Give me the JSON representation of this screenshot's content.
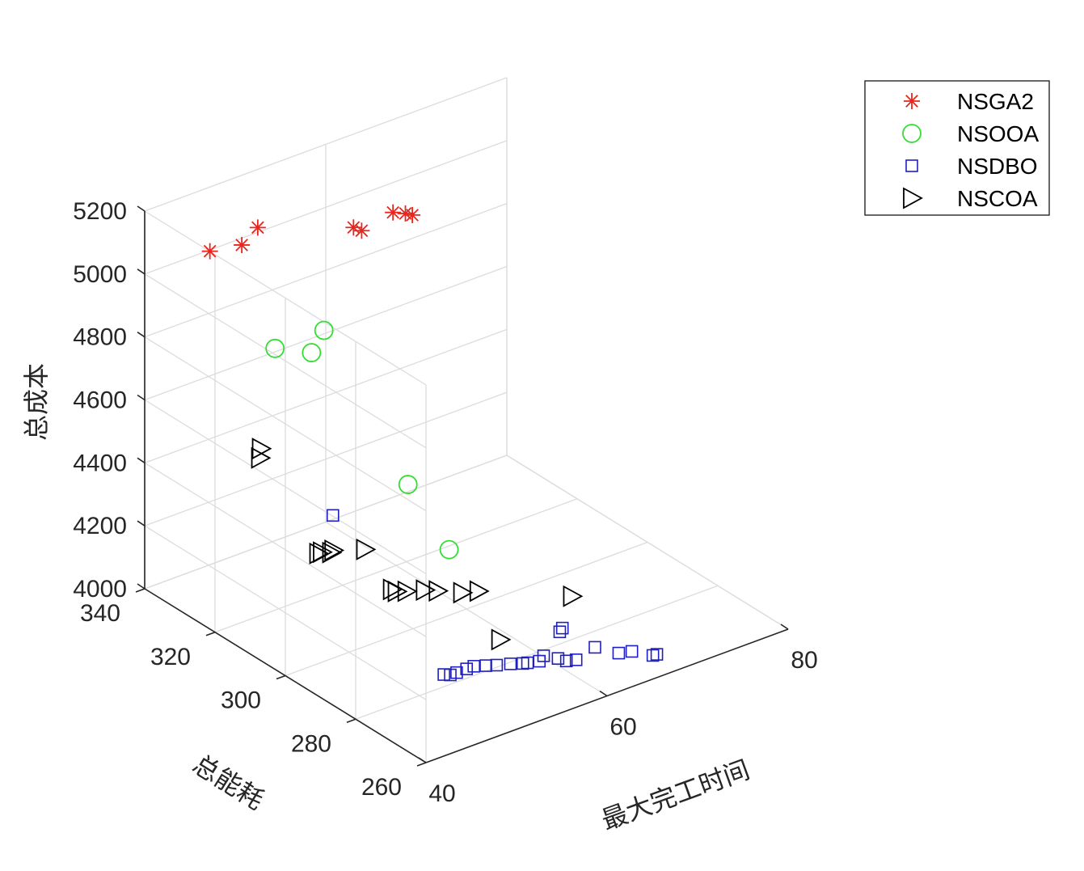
{
  "chart_data": {
    "type": "scatter",
    "projection": "3d",
    "xlabel": "最大完工时间",
    "ylabel": "总能耗",
    "zlabel": "总成本",
    "xlim": [
      40,
      80
    ],
    "ylim": [
      260,
      340
    ],
    "zlim": [
      4000,
      5200
    ],
    "xticks": [
      40,
      60,
      80
    ],
    "yticks": [
      260,
      280,
      300,
      320,
      340
    ],
    "zticks": [
      4000,
      4200,
      4400,
      4600,
      4800,
      5000,
      5200
    ],
    "grid": true,
    "legend_position": "top-right",
    "series": [
      {
        "name": "NSGA2",
        "marker": "asterisk",
        "color": "#e8261e",
        "points": [
          {
            "x": 44.6,
            "y": 333.3,
            "z": 5070
          },
          {
            "x": 47.5,
            "y": 331.7,
            "z": 5070
          },
          {
            "x": 48.8,
            "y": 330.5,
            "z": 5120
          },
          {
            "x": 57.2,
            "y": 324.9,
            "z": 5070
          },
          {
            "x": 57.4,
            "y": 323.1,
            "z": 5070
          },
          {
            "x": 60.2,
            "y": 321.4,
            "z": 5110
          },
          {
            "x": 61.3,
            "y": 320.7,
            "z": 5100
          },
          {
            "x": 61.6,
            "y": 319.5,
            "z": 5100
          }
        ]
      },
      {
        "name": "NSOOA",
        "marker": "circle",
        "color": "#33dd33",
        "points": [
          {
            "x": 49.5,
            "y": 327.4,
            "z": 4750
          },
          {
            "x": 51.9,
            "y": 323.2,
            "z": 4740
          },
          {
            "x": 54.9,
            "y": 327.4,
            "z": 4750
          },
          {
            "x": 55.8,
            "y": 305.8,
            "z": 4400
          },
          {
            "x": 58.4,
            "y": 300.8,
            "z": 4200
          }
        ]
      },
      {
        "name": "NSDBO",
        "marker": "square",
        "color": "#1f1fbf",
        "points": [
          {
            "x": 48.9,
            "y": 309.4,
            "z": 4350
          },
          {
            "x": 51.1,
            "y": 283.5,
            "z": 4000
          },
          {
            "x": 51.5,
            "y": 282.7,
            "z": 4000
          },
          {
            "x": 52.2,
            "y": 282.7,
            "z": 4000
          },
          {
            "x": 53.3,
            "y": 282.7,
            "z": 4000
          },
          {
            "x": 54.1,
            "y": 282.7,
            "z": 4000
          },
          {
            "x": 55.0,
            "y": 281.6,
            "z": 4000
          },
          {
            "x": 55.8,
            "y": 280.6,
            "z": 4000
          },
          {
            "x": 56.9,
            "y": 279.5,
            "z": 4000
          },
          {
            "x": 57.8,
            "y": 278.3,
            "z": 4000
          },
          {
            "x": 58.2,
            "y": 278.0,
            "z": 4000
          },
          {
            "x": 59.2,
            "y": 277.2,
            "z": 4000
          },
          {
            "x": 60.1,
            "y": 278.3,
            "z": 4000
          },
          {
            "x": 60.8,
            "y": 276.0,
            "z": 4000
          },
          {
            "x": 61.1,
            "y": 274.4,
            "z": 4000
          },
          {
            "x": 61.9,
            "y": 273.7,
            "z": 4000
          },
          {
            "x": 63.9,
            "y": 283.5,
            "z": 4000
          },
          {
            "x": 64.5,
            "y": 284.3,
            "z": 4000
          },
          {
            "x": 64.6,
            "y": 275.3,
            "z": 4000
          },
          {
            "x": 65.6,
            "y": 271.1,
            "z": 4000
          },
          {
            "x": 66.7,
            "y": 270.2,
            "z": 4000
          },
          {
            "x": 67.7,
            "y": 266.8,
            "z": 4000
          },
          {
            "x": 68.1,
            "y": 266.7,
            "z": 4000
          }
        ]
      },
      {
        "name": "NSCOA",
        "marker": "triangle-right",
        "color": "#000000",
        "points": [
          {
            "x": 45.0,
            "y": 320.1,
            "z": 4500
          },
          {
            "x": 45.4,
            "y": 320.9,
            "z": 4520
          },
          {
            "x": 48.9,
            "y": 313.6,
            "z": 4200
          },
          {
            "x": 49.3,
            "y": 313.6,
            "z": 4200
          },
          {
            "x": 49.9,
            "y": 312.5,
            "z": 4200
          },
          {
            "x": 50.3,
            "y": 312.9,
            "z": 4200
          },
          {
            "x": 52.6,
            "y": 309.8,
            "z": 4200
          },
          {
            "x": 53.5,
            "y": 304.5,
            "z": 4100
          },
          {
            "x": 53.6,
            "y": 303.4,
            "z": 4100
          },
          {
            "x": 54.3,
            "y": 302.4,
            "z": 4100
          },
          {
            "x": 55.7,
            "y": 300.8,
            "z": 4100
          },
          {
            "x": 56.5,
            "y": 299.2,
            "z": 4100
          },
          {
            "x": 58.0,
            "y": 296.1,
            "z": 4100
          },
          {
            "x": 59.3,
            "y": 294.8,
            "z": 4100
          },
          {
            "x": 58.9,
            "y": 287.6,
            "z": 4000
          },
          {
            "x": 65.2,
            "y": 283.4,
            "z": 4100
          }
        ]
      }
    ]
  }
}
